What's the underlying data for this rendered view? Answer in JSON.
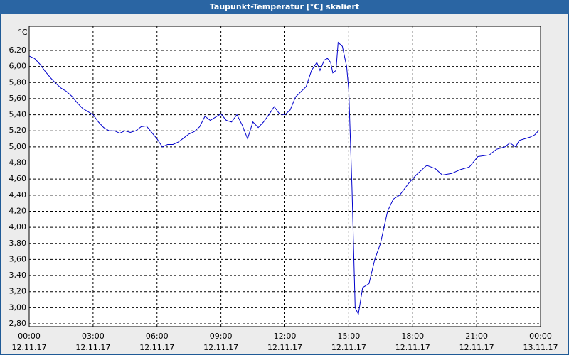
{
  "chart_data": {
    "type": "line",
    "title": "Taupunkt-Temperatur [°C] skaliert",
    "y_unit": "°C",
    "xlim": [
      0,
      24
    ],
    "ylim": [
      2.765,
      6.5
    ],
    "grid": true,
    "xticks": [
      {
        "value": 0,
        "label": "00:00"
      },
      {
        "value": 3,
        "label": "03:00"
      },
      {
        "value": 6,
        "label": "06:00"
      },
      {
        "value": 9,
        "label": "09:00"
      },
      {
        "value": 12,
        "label": "12:00"
      },
      {
        "value": 15,
        "label": "15:00"
      },
      {
        "value": 18,
        "label": "18:00"
      },
      {
        "value": 21,
        "label": "21:00"
      },
      {
        "value": 24,
        "label": "00:00"
      }
    ],
    "xtick_dates": [
      "12.11.17",
      "12.11.17",
      "12.11.17",
      "12.11.17",
      "12.11.17",
      "12.11.17",
      "12.11.17",
      "12.11.17",
      "13.11.17"
    ],
    "yticks": [
      {
        "value": 2.8,
        "label": "2,80"
      },
      {
        "value": 3.0,
        "label": "3,00"
      },
      {
        "value": 3.2,
        "label": "3,20"
      },
      {
        "value": 3.4,
        "label": "3,40"
      },
      {
        "value": 3.6,
        "label": "3,60"
      },
      {
        "value": 3.8,
        "label": "3,80"
      },
      {
        "value": 4.0,
        "label": "4,00"
      },
      {
        "value": 4.2,
        "label": "4,20"
      },
      {
        "value": 4.4,
        "label": "4,40"
      },
      {
        "value": 4.6,
        "label": "4,60"
      },
      {
        "value": 4.8,
        "label": "4,80"
      },
      {
        "value": 5.0,
        "label": "5,00"
      },
      {
        "value": 5.2,
        "label": "5,20"
      },
      {
        "value": 5.4,
        "label": "5,40"
      },
      {
        "value": 5.6,
        "label": "5,60"
      },
      {
        "value": 5.8,
        "label": "5,80"
      },
      {
        "value": 6.0,
        "label": "6,00"
      },
      {
        "value": 6.2,
        "label": "6,20"
      }
    ],
    "x": [
      0,
      0.25,
      0.5,
      0.75,
      1.0,
      1.25,
      1.5,
      1.75,
      2.0,
      2.25,
      2.5,
      2.75,
      3.0,
      3.25,
      3.5,
      3.75,
      4.0,
      4.25,
      4.5,
      4.75,
      5.0,
      5.25,
      5.5,
      5.75,
      6.0,
      6.25,
      6.5,
      6.75,
      7.0,
      7.25,
      7.5,
      7.75,
      8.0,
      8.25,
      8.5,
      8.75,
      9.0,
      9.25,
      9.5,
      9.75,
      10.0,
      10.25,
      10.5,
      10.75,
      11.0,
      11.25,
      11.5,
      11.75,
      12.0,
      12.25,
      12.5,
      13.0,
      13.25,
      13.5,
      13.65,
      13.85,
      14.0,
      14.15,
      14.25,
      14.4,
      14.5,
      14.7,
      14.9,
      15.0,
      15.15,
      15.3,
      15.45,
      15.65,
      15.95,
      16.22,
      16.49,
      16.82,
      17.09,
      17.39,
      17.82,
      18.16,
      18.66,
      19.06,
      19.39,
      19.83,
      20.26,
      20.66,
      21.06,
      21.6,
      21.93,
      22.33,
      22.56,
      22.83,
      23.0,
      23.5,
      23.73,
      23.9
    ],
    "series": [
      {
        "color": "#0000cc",
        "values": [
          6.13,
          6.1,
          6.03,
          5.94,
          5.86,
          5.79,
          5.73,
          5.69,
          5.63,
          5.55,
          5.48,
          5.44,
          5.4,
          5.31,
          5.24,
          5.2,
          5.2,
          5.17,
          5.2,
          5.18,
          5.2,
          5.25,
          5.26,
          5.18,
          5.1,
          5.0,
          5.03,
          5.03,
          5.06,
          5.11,
          5.16,
          5.19,
          5.25,
          5.38,
          5.33,
          5.37,
          5.41,
          5.33,
          5.31,
          5.4,
          5.27,
          5.1,
          5.31,
          5.24,
          5.31,
          5.4,
          5.5,
          5.41,
          5.4,
          5.46,
          5.62,
          5.75,
          5.95,
          6.05,
          5.95,
          6.08,
          6.1,
          6.05,
          5.92,
          5.95,
          6.3,
          6.25,
          6.0,
          5.7,
          4.5,
          3.0,
          2.92,
          3.25,
          3.3,
          3.6,
          3.8,
          4.2,
          4.35,
          4.4,
          4.55,
          4.65,
          4.77,
          4.73,
          4.65,
          4.67,
          4.72,
          4.75,
          4.88,
          4.9,
          4.97,
          5.0,
          5.05,
          5.0,
          5.08,
          5.12,
          5.15,
          5.2
        ]
      }
    ]
  }
}
